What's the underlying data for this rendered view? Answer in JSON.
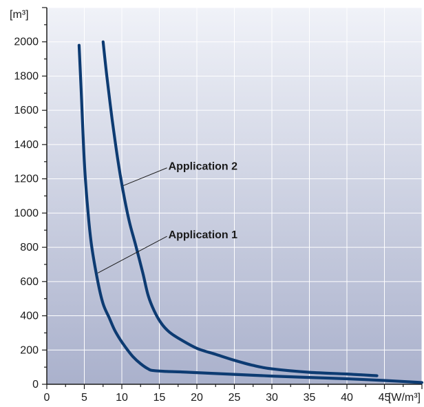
{
  "chart_data": {
    "type": "line",
    "title": "",
    "xlabel": "[W/m³]",
    "ylabel": "[m³]",
    "xlim": [
      0,
      50
    ],
    "ylim": [
      0,
      2200
    ],
    "x_ticks": [
      0,
      5,
      10,
      15,
      20,
      25,
      30,
      35,
      40,
      45
    ],
    "x_tick_labels": [
      "0",
      "5",
      "10",
      "15",
      "20",
      "25",
      "30",
      "35",
      "40",
      "45"
    ],
    "y_ticks": [
      0,
      200,
      400,
      600,
      800,
      1000,
      1200,
      1400,
      1600,
      1800,
      2000
    ],
    "y_tick_labels": [
      "0",
      "200",
      "400",
      "600",
      "800",
      "1000",
      "1200",
      "1400",
      "1600",
      "1800",
      "2000"
    ],
    "grid": true,
    "background": "gradient",
    "colors": {
      "line": "#0d3b72",
      "grid": "#ffffff",
      "bg_top": "#f0f2f8",
      "bg_bottom": "#aab1cc"
    },
    "series": [
      {
        "name": "",
        "x": [
          4.3,
          4.6,
          5.0,
          5.5,
          6.0,
          6.8,
          7.5,
          8.3,
          9.0,
          9.8,
          10.6,
          11.5,
          12.5,
          13.5,
          14.2,
          16,
          18,
          20,
          25,
          30,
          35,
          40,
          45,
          50
        ],
        "y": [
          1980,
          1700,
          1300,
          1000,
          800,
          600,
          470,
          390,
          320,
          260,
          210,
          160,
          120,
          90,
          80,
          75,
          72,
          68,
          58,
          48,
          40,
          32,
          22,
          10
        ]
      },
      {
        "name": "",
        "x": [
          7.5,
          8.0,
          8.7,
          9.5,
          10.2,
          11.0,
          11.8,
          12.8,
          13.5,
          14.3,
          15.2,
          16.2,
          17.5,
          20,
          22.5,
          25,
          27.5,
          30,
          35,
          40,
          44
        ],
        "y": [
          2000,
          1800,
          1550,
          1300,
          1120,
          950,
          820,
          650,
          520,
          430,
          360,
          310,
          270,
          210,
          175,
          140,
          110,
          90,
          70,
          60,
          50
        ]
      }
    ],
    "annotations": [
      {
        "text": "Application 2",
        "target_x": 10.2,
        "target_y": 1160,
        "label_x": 16.2,
        "label_y": 1280
      },
      {
        "text": "Application 1",
        "target_x": 6.8,
        "target_y": 650,
        "label_x": 16.2,
        "label_y": 880
      }
    ]
  }
}
